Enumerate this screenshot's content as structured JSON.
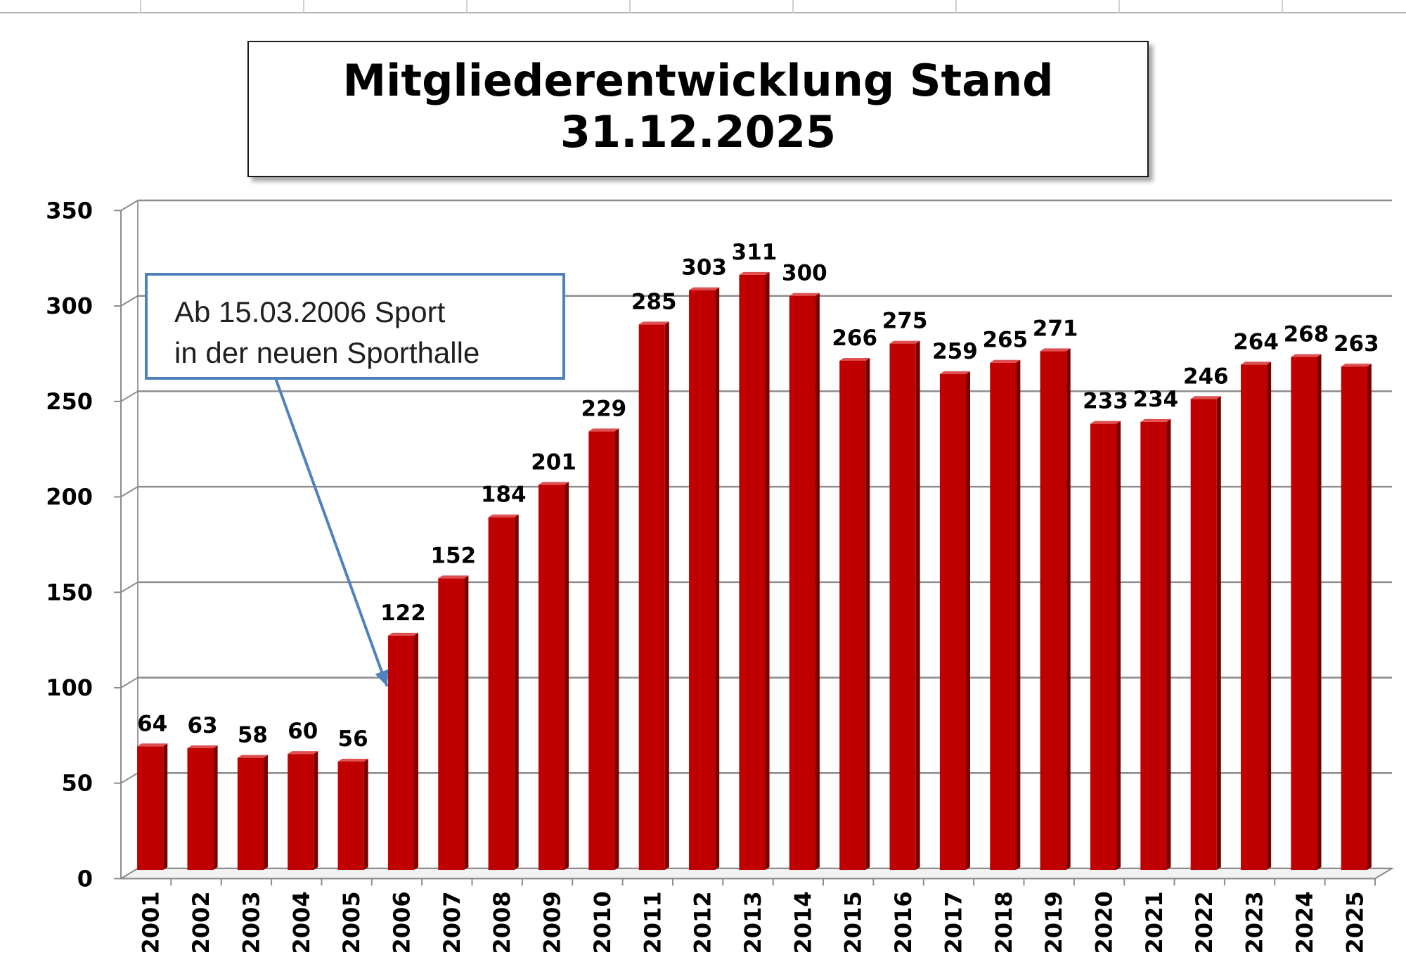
{
  "chart_data": {
    "type": "bar",
    "title": "Mitgliederentwicklung Stand 31.12.2025",
    "xlabel": "",
    "ylabel": "",
    "categories": [
      "2001",
      "2002",
      "2003",
      "2004",
      "2005",
      "2006",
      "2007",
      "2008",
      "2009",
      "2010",
      "2011",
      "2012",
      "2013",
      "2014",
      "2015",
      "2016",
      "2017",
      "2018",
      "2019",
      "2020",
      "2021",
      "2022",
      "2023",
      "2024",
      "2025"
    ],
    "series": [
      {
        "values": [
          64,
          63,
          58,
          60,
          56,
          122,
          152,
          184,
          201,
          229,
          285,
          303,
          311,
          300,
          266,
          275,
          259,
          265,
          271,
          233,
          234,
          246,
          264,
          268,
          263
        ]
      }
    ],
    "ylim": [
      0,
      350
    ],
    "yticks": [
      "0",
      "50",
      "100",
      "150",
      "200",
      "250",
      "300",
      "350"
    ],
    "grid": true,
    "legend": "none",
    "bar_color": "#c00000",
    "annotation": {
      "line1": "Ab 15.03.2006 Sport",
      "line2": "in der neuen Sporthalle",
      "border_color": "#4f81bd",
      "arrow_target_category": "2006"
    }
  }
}
